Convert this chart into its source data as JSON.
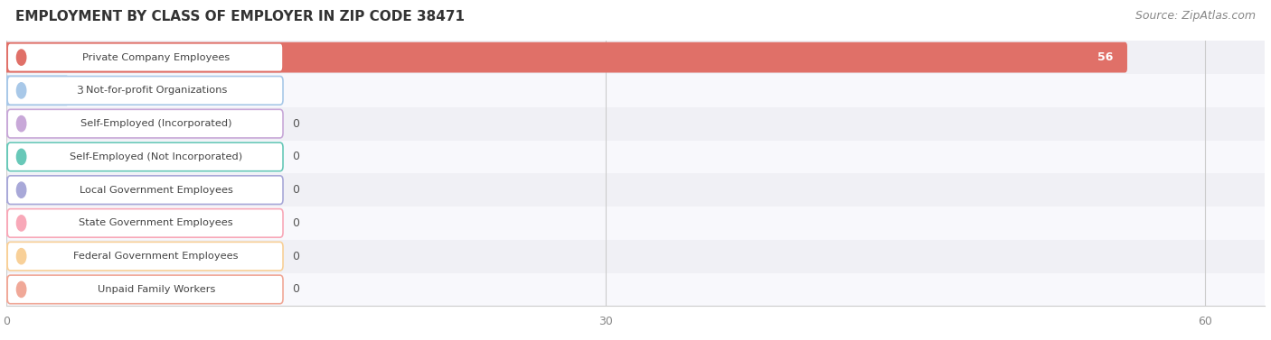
{
  "title": "EMPLOYMENT BY CLASS OF EMPLOYER IN ZIP CODE 38471",
  "source": "Source: ZipAtlas.com",
  "categories": [
    "Private Company Employees",
    "Not-for-profit Organizations",
    "Self-Employed (Incorporated)",
    "Self-Employed (Not Incorporated)",
    "Local Government Employees",
    "State Government Employees",
    "Federal Government Employees",
    "Unpaid Family Workers"
  ],
  "values": [
    56,
    3,
    0,
    0,
    0,
    0,
    0,
    0
  ],
  "bar_colors": [
    "#e07068",
    "#a8c8e8",
    "#c8a8d8",
    "#68c8b8",
    "#a8a8d8",
    "#f8a8b8",
    "#f8d098",
    "#f0a898"
  ],
  "label_bg_colors": [
    "#ffffff",
    "#ffffff",
    "#ffffff",
    "#ffffff",
    "#ffffff",
    "#ffffff",
    "#ffffff",
    "#ffffff"
  ],
  "label_border_colors": [
    "#e07068",
    "#a8c8e8",
    "#c8a8d8",
    "#68c8b8",
    "#a8a8d8",
    "#f8a8b8",
    "#f8d098",
    "#f0a898"
  ],
  "dot_colors": [
    "#e07068",
    "#a8c8e8",
    "#c8a8d8",
    "#68c8b8",
    "#a8a8d8",
    "#f8a8b8",
    "#f8d098",
    "#f0a898"
  ],
  "xlim_max": 63,
  "xticks": [
    0,
    30,
    60
  ],
  "title_fontsize": 11,
  "source_fontsize": 9,
  "bar_height": 0.68,
  "row_colors": [
    "#f0f0f5",
    "#f8f8fc"
  ]
}
